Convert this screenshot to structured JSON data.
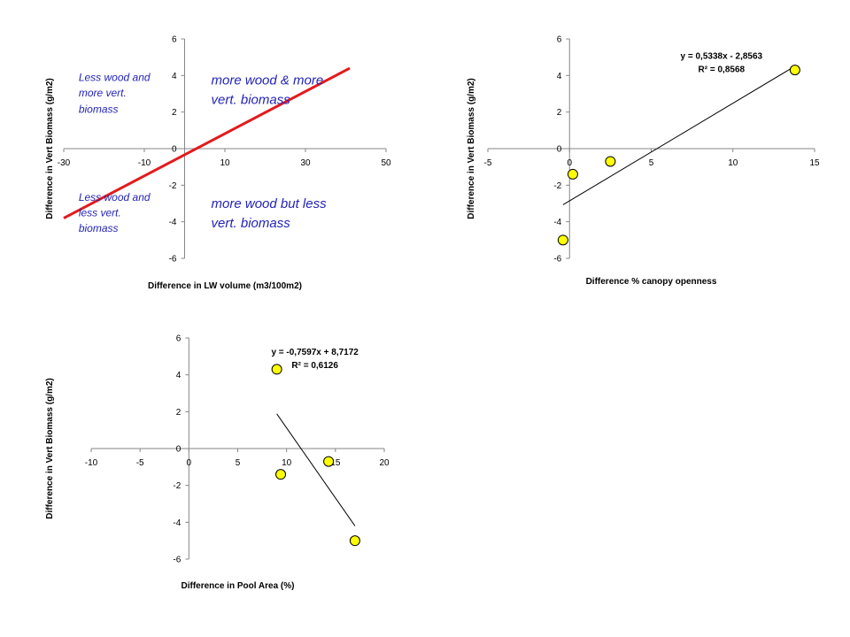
{
  "colors": {
    "axis": "#868686",
    "point_fill": "#ffff00",
    "point_stroke": "#000000",
    "trend_red": "#e31a1c",
    "trend_black": "#000000",
    "annotation": "#2424b8"
  },
  "chart_data": [
    {
      "type": "line",
      "xlabel": "Difference in LW volume (m3/100m2)",
      "ylabel": "Difference in Vert Biomass (g/m2)",
      "xlim": [
        -30,
        50
      ],
      "ylim": [
        -6,
        6
      ],
      "xticks": [
        "-30",
        "-10",
        "10",
        "30",
        "50"
      ],
      "yticks": [
        "-6",
        "-4",
        "-2",
        "0",
        "2",
        "4",
        "6"
      ],
      "xtick_values": [
        -30,
        -10,
        10,
        30,
        50
      ],
      "ytick_values": [
        -6,
        -4,
        -2,
        0,
        2,
        4,
        6
      ],
      "series": [
        {
          "x": [
            -30,
            41
          ],
          "y": [
            -3.8,
            4.4
          ]
        }
      ],
      "annotations": [
        {
          "text": "Less wood and",
          "x": -26.3,
          "y": 3.7,
          "size": "small"
        },
        {
          "text": "more vert.",
          "x": -26.3,
          "y": 2.85,
          "size": "small"
        },
        {
          "text": "biomass",
          "x": -26.3,
          "y": 1.95,
          "size": "small"
        },
        {
          "text": "Less wood and",
          "x": -26.3,
          "y": -2.85,
          "size": "small"
        },
        {
          "text": "less vert.",
          "x": -26.3,
          "y": -3.7,
          "size": "small"
        },
        {
          "text": "biomass",
          "x": -26.3,
          "y": -4.55,
          "size": "small"
        },
        {
          "text": "more wood & more",
          "x": 6.6,
          "y": 3.5,
          "size": "big"
        },
        {
          "text": "vert. biomass",
          "x": 6.6,
          "y": 2.45,
          "size": "big"
        },
        {
          "text": "more wood but less",
          "x": 6.6,
          "y": -3.25,
          "size": "big"
        },
        {
          "text": "vert. biomass",
          "x": 6.6,
          "y": -4.3,
          "size": "big"
        }
      ]
    },
    {
      "type": "scatter",
      "xlabel": "Difference % canopy openness",
      "ylabel": "Difference in Vert Biomass (g/m2)",
      "xlim": [
        -5,
        15
      ],
      "ylim": [
        -6,
        6
      ],
      "xticks": [
        "-5",
        "0",
        "5",
        "10",
        "15"
      ],
      "yticks": [
        "-6",
        "-4",
        "-2",
        "0",
        "2",
        "4",
        "6"
      ],
      "xtick_values": [
        -5,
        0,
        5,
        10,
        15
      ],
      "ytick_values": [
        -6,
        -4,
        -2,
        0,
        2,
        4,
        6
      ],
      "points": [
        {
          "x": -0.4,
          "y": -5.0
        },
        {
          "x": 0.2,
          "y": -1.4
        },
        {
          "x": 2.5,
          "y": -0.7
        },
        {
          "x": 13.8,
          "y": 4.3
        }
      ],
      "trendline": {
        "slope": 0.5338,
        "intercept": -2.8563,
        "x_range": [
          -0.4,
          13.8
        ]
      },
      "equation": "y = 0,5338x - 2,8563",
      "r2": "R² = 0,8568",
      "equation_pos": {
        "x": 9.3,
        "y": 4.9
      }
    },
    {
      "type": "scatter",
      "xlabel": "Difference in Pool Area (%)",
      "ylabel": "Difference in Vert Biomass (g/m2)",
      "xlim": [
        -10,
        20
      ],
      "ylim": [
        -6,
        6
      ],
      "xticks": [
        "-10",
        "-5",
        "0",
        "5",
        "10",
        "15",
        "20"
      ],
      "yticks": [
        "-6",
        "-4",
        "-2",
        "0",
        "2",
        "4",
        "6"
      ],
      "xtick_values": [
        -10,
        -5,
        0,
        5,
        10,
        15,
        20
      ],
      "ytick_values": [
        -6,
        -4,
        -2,
        0,
        2,
        4,
        6
      ],
      "points": [
        {
          "x": 9.0,
          "y": 4.3
        },
        {
          "x": 9.4,
          "y": -1.4
        },
        {
          "x": 14.3,
          "y": -0.7
        },
        {
          "x": 17.0,
          "y": -5.0
        }
      ],
      "trendline": {
        "slope": -0.7597,
        "intercept": 8.7172,
        "x_range": [
          9.0,
          17.0
        ]
      },
      "equation": "y = -0,7597x + 8,7172",
      "r2": "R² = 0,6126",
      "equation_pos": {
        "x": 12.9,
        "y": 5.1
      }
    }
  ]
}
